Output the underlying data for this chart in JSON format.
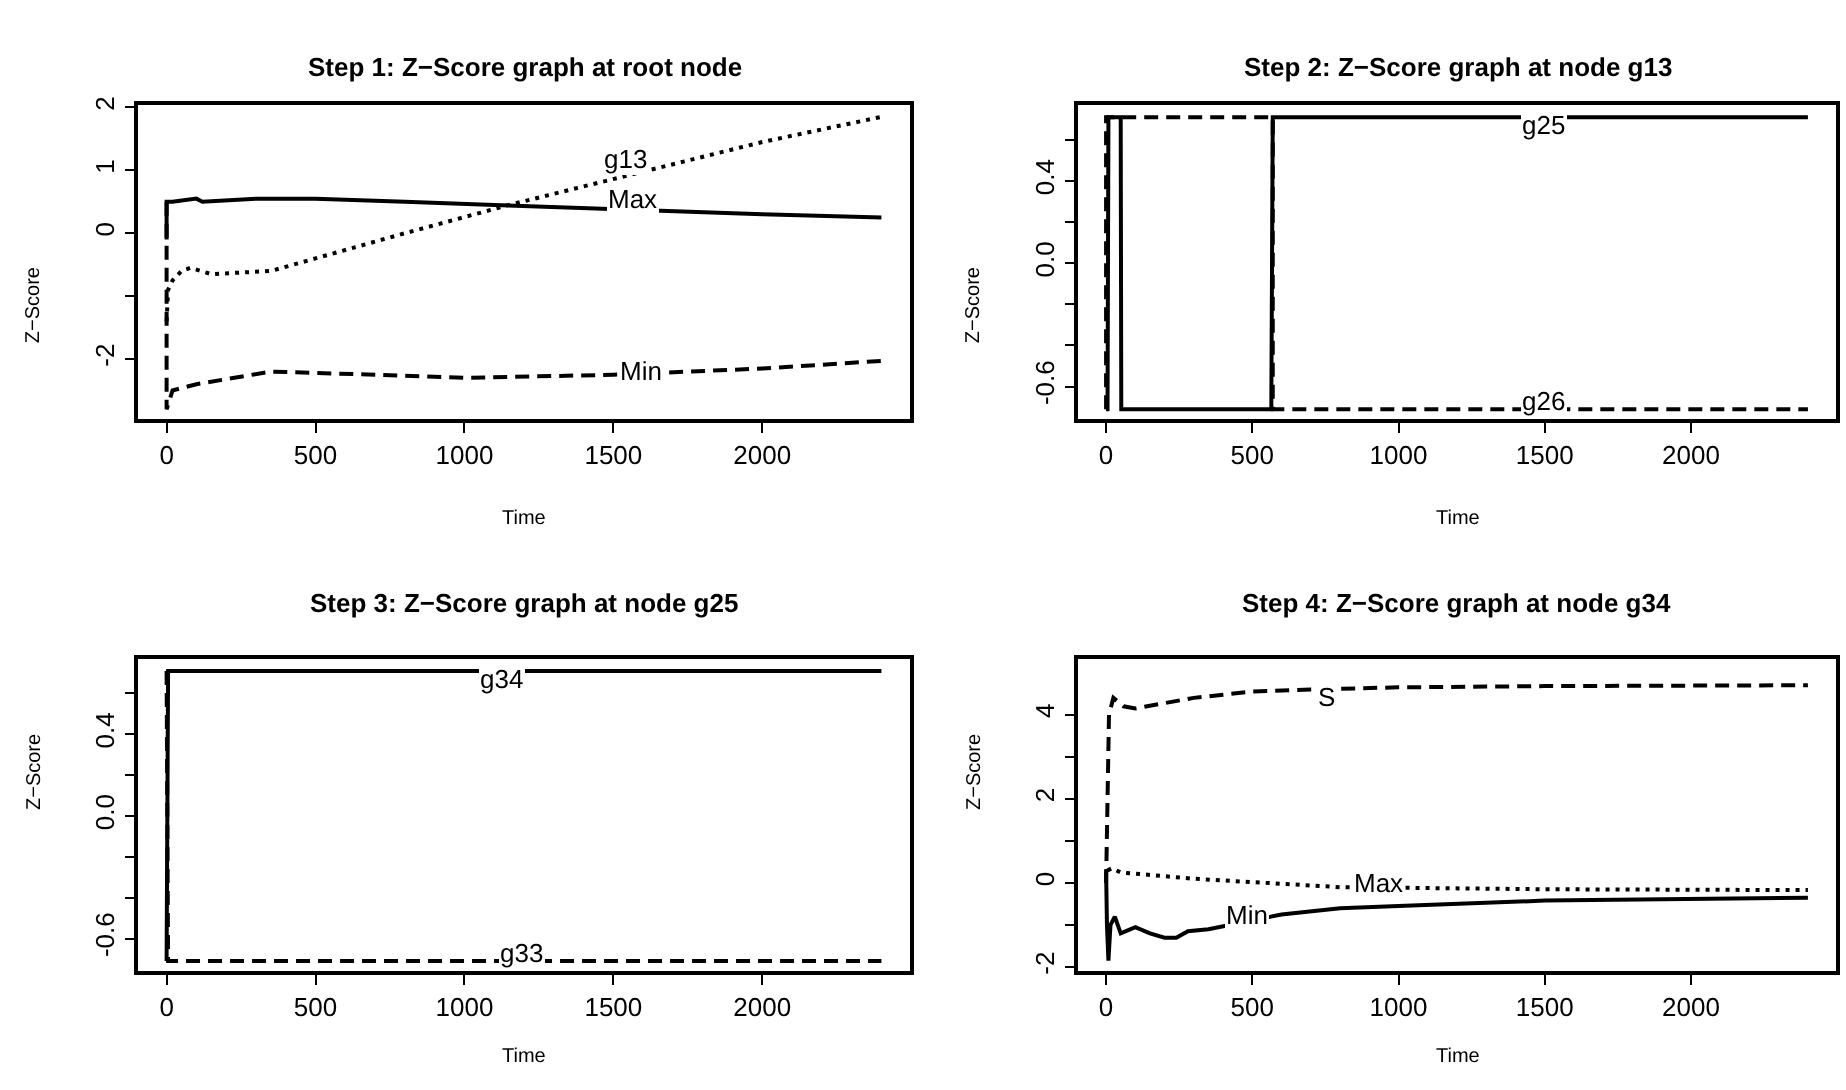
{
  "chart_data": [
    {
      "type": "line",
      "title": "Step 1: Z−Score graph at root node",
      "xlabel": "Time",
      "ylabel": "Z−Score",
      "xlim": [
        -96,
        2496
      ],
      "xticks": [
        0,
        500,
        1000,
        1500,
        2000
      ],
      "ylim": [
        -2.96,
        2.04
      ],
      "yticks": [
        -2,
        {
          "value": -1,
          "label": null
        },
        0,
        1,
        2
      ],
      "series": [
        {
          "color": "#000000",
          "line_style": "solid",
          "x": [
            0,
            0,
            20,
            100,
            120,
            300,
            500,
            800,
            1100,
            2000,
            2400
          ],
          "values": [
            -0.1,
            0.5,
            0.5,
            0.55,
            0.5,
            0.55,
            0.55,
            0.5,
            0.45,
            0.3,
            0.25
          ]
        },
        {
          "color": "#000000",
          "line_style": "dotted",
          "x": [
            0,
            5,
            20,
            50,
            80,
            150,
            350,
            500,
            800,
            1150,
            2000,
            2400
          ],
          "values": [
            -1.4,
            -0.9,
            -0.75,
            -0.6,
            -0.55,
            -0.65,
            -0.6,
            -0.4,
            0.0,
            0.45,
            1.45,
            1.85
          ]
        },
        {
          "color": "#000000",
          "line_style": "dashed",
          "x": [
            0,
            0,
            20,
            100,
            350,
            700,
            1000,
            1500,
            2000,
            2400
          ],
          "values": [
            0.5,
            -2.8,
            -2.5,
            -2.4,
            -2.2,
            -2.25,
            -2.3,
            -2.25,
            -2.15,
            -2.03
          ]
        }
      ],
      "annotations": [
        {
          "text": "g13",
          "x": 1545,
          "y": 1.18
        },
        {
          "text": "Max",
          "x": 1567,
          "y": 0.55
        },
        {
          "text": "Min",
          "x": 1590,
          "y": -2.18
        }
      ]
    },
    {
      "type": "line",
      "title": "Step 2: Z−Score graph at node g13",
      "xlabel": "Time",
      "ylabel": "Z−Score",
      "xlim": [
        -96,
        2496
      ],
      "xticks": [
        0,
        500,
        1000,
        1500,
        2000
      ],
      "ylim": [
        -0.76,
        0.77
      ],
      "yticks": [
        -0.6,
        {
          "value": -0.4,
          "label": null
        },
        {
          "value": -0.2,
          "label": null
        },
        {
          "value": 0,
          "label": "0.0"
        },
        {
          "value": 0.2,
          "label": null
        },
        0.4,
        {
          "value": 0.6,
          "label": null
        }
      ],
      "series": [
        {
          "color": "#000000",
          "line_style": "solid",
          "x": [
            0,
            5,
            8,
            50,
            52,
            565,
            570,
            2400
          ],
          "values": [
            -0.71,
            -0.71,
            0.71,
            0.71,
            -0.71,
            -0.71,
            0.71,
            0.71
          ]
        },
        {
          "color": "#000000",
          "line_style": "dashed",
          "x": [
            0,
            0,
            570,
            570,
            2400
          ],
          "values": [
            -0.71,
            0.71,
            0.71,
            -0.71,
            -0.71
          ]
        }
      ],
      "annotations": [
        {
          "text": "g25",
          "x": 1500,
          "y": 0.67
        },
        {
          "text": "g26",
          "x": 1500,
          "y": -0.67
        }
      ]
    },
    {
      "type": "line",
      "title": "Step 3: Z−Score graph at node g25",
      "xlabel": "Time",
      "ylabel": "Z−Score",
      "xlim": [
        -96,
        2496
      ],
      "xticks": [
        0,
        500,
        1000,
        1500,
        2000
      ],
      "ylim": [
        -0.76,
        0.77
      ],
      "yticks": [
        -0.6,
        {
          "value": -0.4,
          "label": null
        },
        {
          "value": -0.2,
          "label": null
        },
        {
          "value": 0,
          "label": "0.0"
        },
        {
          "value": 0.2,
          "label": null
        },
        0.4,
        {
          "value": 0.6,
          "label": null
        }
      ],
      "series": [
        {
          "color": "#000000",
          "line_style": "solid",
          "x": [
            0,
            5,
            2400
          ],
          "values": [
            -0.71,
            0.71,
            0.71
          ]
        },
        {
          "color": "#000000",
          "line_style": "dashed",
          "x": [
            0,
            5,
            2400
          ],
          "values": [
            0.71,
            -0.71,
            -0.71
          ]
        }
      ],
      "annotations": [
        {
          "text": "g34",
          "x": 1125,
          "y": 0.67
        },
        {
          "text": "g33",
          "x": 1196,
          "y": -0.67
        }
      ]
    },
    {
      "type": "line",
      "title": "Step 4: Z−Score graph at node g34",
      "xlabel": "Time",
      "ylabel": "Z−Score",
      "xlim": [
        -96,
        2496
      ],
      "xticks": [
        0,
        500,
        1000,
        1500,
        2000
      ],
      "ylim": [
        -2.1,
        5.33
      ],
      "yticks": [
        -2,
        {
          "value": -1,
          "label": null
        },
        0,
        {
          "value": 1,
          "label": null
        },
        2,
        {
          "value": 3,
          "label": null
        },
        4
      ],
      "series": [
        {
          "color": "#000000",
          "line_style": "dashed",
          "x": [
            0,
            10,
            25,
            60,
            100,
            300,
            500,
            700,
            1000,
            1500,
            2400
          ],
          "values": [
            0,
            4.0,
            4.4,
            4.2,
            4.15,
            4.4,
            4.55,
            4.6,
            4.65,
            4.68,
            4.7
          ]
        },
        {
          "color": "#000000",
          "line_style": "dotted",
          "x": [
            5,
            20,
            50,
            300,
            800,
            1500,
            2400
          ],
          "values": [
            0.3,
            0.35,
            0.25,
            0.1,
            -0.1,
            -0.15,
            -0.17
          ]
        },
        {
          "color": "#000000",
          "line_style": "solid",
          "x": [
            0,
            3,
            8,
            15,
            30,
            50,
            100,
            150,
            200,
            240,
            280,
            350,
            600,
            800,
            1000,
            1500,
            2400
          ],
          "values": [
            0.3,
            -1.0,
            -1.85,
            -1.0,
            -0.8,
            -1.2,
            -1.05,
            -1.2,
            -1.3,
            -1.3,
            -1.15,
            -1.1,
            -0.75,
            -0.6,
            -0.55,
            -0.42,
            -0.35
          ]
        }
      ],
      "annotations": [
        {
          "text": "S",
          "x": 753,
          "y": 4.41
        },
        {
          "text": "Max",
          "x": 930,
          "y": 0.0
        },
        {
          "text": "Min",
          "x": 485,
          "y": -0.74
        }
      ]
    }
  ]
}
